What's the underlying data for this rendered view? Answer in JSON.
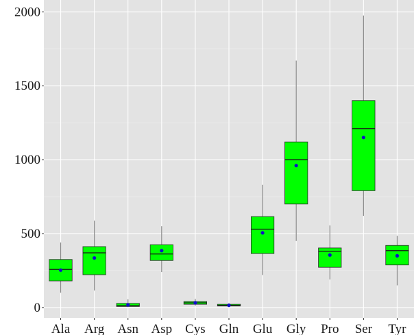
{
  "chart_data": {
    "type": "boxplot",
    "title": "",
    "xlabel": "",
    "ylabel": "",
    "categories": [
      "Ala",
      "Arg",
      "Asn",
      "Asp",
      "Cys",
      "Gln",
      "Glu",
      "Gly",
      "Pro",
      "Ser",
      "Tyr"
    ],
    "y_ticks": [
      "0",
      "500",
      "1000",
      "1500",
      "2000"
    ],
    "y_tick_values": [
      0,
      500,
      1000,
      1500,
      2000
    ],
    "ylim": [
      -70,
      2080
    ],
    "grid": true,
    "legend": "none",
    "colors": {
      "panel": "#e3e3e3",
      "box_fill": "#00ff00",
      "box_edge": "#2b2b2b",
      "whisker": "#8a8a8a",
      "median": "#1a1a1a",
      "mean_point": "#1010c8"
    },
    "boxes": [
      {
        "category": "Ala",
        "whisker_low": 100,
        "q1": 180,
        "median": 258,
        "q3": 325,
        "whisker_high": 440,
        "mean": 253
      },
      {
        "category": "Arg",
        "whisker_low": 115,
        "q1": 222,
        "median": 370,
        "q3": 412,
        "whisker_high": 588,
        "mean": 335
      },
      {
        "category": "Asn",
        "whisker_low": 3,
        "q1": 7,
        "median": 14,
        "q3": 28,
        "whisker_high": 55,
        "mean": 18
      },
      {
        "category": "Asp",
        "whisker_low": 240,
        "q1": 318,
        "median": 362,
        "q3": 425,
        "whisker_high": 550,
        "mean": 385
      },
      {
        "category": "Cys",
        "whisker_low": 12,
        "q1": 22,
        "median": 32,
        "q3": 40,
        "whisker_high": 58,
        "mean": 32
      },
      {
        "category": "Gln",
        "whisker_low": 6,
        "q1": 10,
        "median": 15,
        "q3": 22,
        "whisker_high": 28,
        "mean": 15
      },
      {
        "category": "Glu",
        "whisker_low": 220,
        "q1": 365,
        "median": 530,
        "q3": 615,
        "whisker_high": 830,
        "mean": 505
      },
      {
        "category": "Gly",
        "whisker_low": 450,
        "q1": 700,
        "median": 1000,
        "q3": 1120,
        "whisker_high": 1670,
        "mean": 960
      },
      {
        "category": "Pro",
        "whisker_low": 190,
        "q1": 272,
        "median": 380,
        "q3": 403,
        "whisker_high": 555,
        "mean": 355
      },
      {
        "category": "Ser",
        "whisker_low": 620,
        "q1": 790,
        "median": 1210,
        "q3": 1400,
        "whisker_high": 1975,
        "mean": 1150
      },
      {
        "category": "Tyr",
        "whisker_low": 150,
        "q1": 288,
        "median": 385,
        "q3": 420,
        "whisker_high": 485,
        "mean": 350
      }
    ]
  }
}
